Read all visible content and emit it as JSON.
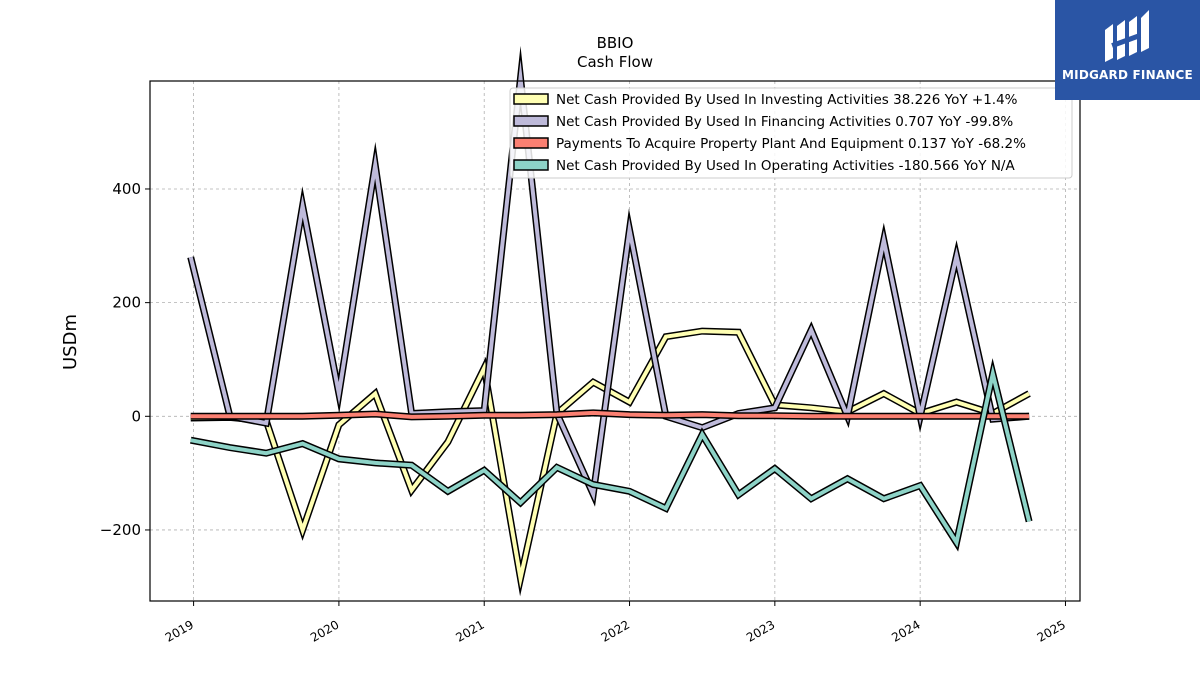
{
  "logo": {
    "text": "MIDGARD FINANCE"
  },
  "chart_data": {
    "type": "line",
    "title": "BBIO",
    "subtitle": "Cash Flow",
    "ylabel": "USDm",
    "xlim": [
      2018.7,
      2025.1
    ],
    "ylim": [
      -325,
      590
    ],
    "yticks": [
      -200,
      0,
      200,
      400
    ],
    "ytick_labels": [
      "−200",
      "0",
      "200",
      "400"
    ],
    "xticks": [
      2019,
      2020,
      2021,
      2022,
      2023,
      2024,
      2025
    ],
    "xtick_labels": [
      "2019",
      "2020",
      "2021",
      "2022",
      "2023",
      "2024",
      "2025"
    ],
    "grid": true,
    "legend_position": "top-right",
    "x": [
      2018.98,
      2019.25,
      2019.5,
      2019.75,
      2020.0,
      2020.25,
      2020.5,
      2020.75,
      2021.0,
      2021.25,
      2021.5,
      2021.75,
      2022.0,
      2022.25,
      2022.5,
      2022.75,
      2023.0,
      2023.25,
      2023.5,
      2023.75,
      2024.0,
      2024.25,
      2024.5,
      2024.75
    ],
    "series": [
      {
        "name": "Net Cash Provided By Used In Investing Activities  38.226 YoY +1.4%",
        "color": "#ffffb3",
        "values": [
          -3,
          -2,
          -8,
          -200,
          -15,
          40,
          -130,
          -45,
          85,
          -285,
          5,
          60,
          25,
          140,
          150,
          148,
          20,
          15,
          8,
          40,
          5,
          25,
          5,
          40
        ]
      },
      {
        "name": "Net Cash Provided By Used In Financing Activities  0.707 YoY -99.8%",
        "color": "#bebada",
        "values": [
          280,
          0,
          -12,
          370,
          40,
          442,
          5,
          8,
          10,
          595,
          5,
          -137,
          328,
          0,
          -20,
          5,
          15,
          152,
          0,
          310,
          0,
          282,
          -5,
          0
        ]
      },
      {
        "name": "Payments To Acquire Property Plant And Equipment  0.137 YoY -68.2%",
        "color": "#fb8072",
        "values": [
          0,
          0,
          0,
          0,
          2,
          4,
          -1,
          0,
          2,
          2,
          3,
          6,
          3,
          2,
          3,
          1,
          1,
          0,
          0,
          0,
          0,
          0,
          0,
          0.137
        ]
      },
      {
        "name": "Net Cash Provided By Used In Operating Activities  -180.566 YoY N/A",
        "color": "#8dd3c7",
        "values": [
          -42,
          -55,
          -65,
          -48,
          -75,
          -82,
          -86,
          -132,
          -95,
          -152,
          -90,
          -120,
          -132,
          -162,
          -32,
          -138,
          -92,
          -145,
          -110,
          -145,
          -122,
          -222,
          75,
          -185
        ]
      }
    ],
    "legend_order": [
      0,
      1,
      2,
      3
    ]
  }
}
